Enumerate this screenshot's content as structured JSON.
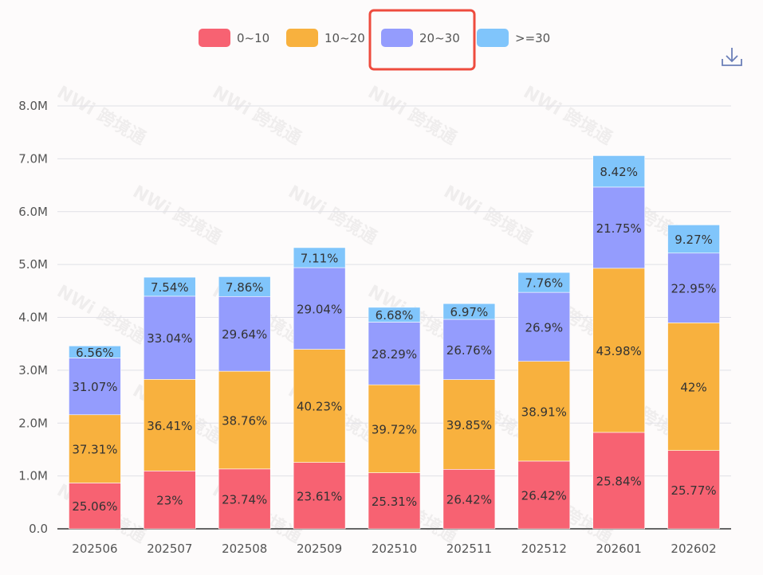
{
  "highlighted_legend": "20~30",
  "toolbar": {
    "download_icon": "download-icon"
  },
  "watermark": "NWi 跨境通",
  "chart_data": {
    "type": "bar",
    "stacked": true,
    "categories": [
      "202506",
      "202507",
      "202508",
      "202509",
      "202510",
      "202511",
      "202512",
      "202601",
      "202602"
    ],
    "totals_M": [
      3.46,
      4.76,
      4.77,
      5.32,
      4.19,
      4.26,
      4.85,
      7.06,
      5.75
    ],
    "series": [
      {
        "name": "0~10",
        "color": "#f76272",
        "percent_labels": [
          "25.06%",
          "23%",
          "23.74%",
          "23.61%",
          "25.31%",
          "26.42%",
          "26.42%",
          "25.84%",
          "25.77%"
        ],
        "percents": [
          25.06,
          23,
          23.74,
          23.61,
          25.31,
          26.42,
          26.42,
          25.84,
          25.77
        ]
      },
      {
        "name": "10~20",
        "color": "#f8b13e",
        "percent_labels": [
          "37.31%",
          "36.41%",
          "38.76%",
          "40.23%",
          "39.72%",
          "39.85%",
          "38.91%",
          "43.98%",
          "42%"
        ],
        "percents": [
          37.31,
          36.41,
          38.76,
          40.23,
          39.72,
          39.85,
          38.91,
          43.98,
          42
        ]
      },
      {
        "name": "20~30",
        "color": "#949cfd",
        "percent_labels": [
          "31.07%",
          "33.04%",
          "29.64%",
          "29.04%",
          "28.29%",
          "26.76%",
          "26.9%",
          "21.75%",
          "22.95%"
        ],
        "percents": [
          31.07,
          33.04,
          29.64,
          29.04,
          28.29,
          26.76,
          26.9,
          21.75,
          22.95
        ]
      },
      {
        "name": ">=30",
        "color": "#80c5fb",
        "percent_labels": [
          "6.56%",
          "7.54%",
          "7.86%",
          "7.11%",
          "6.68%",
          "6.97%",
          "7.76%",
          "8.42%",
          "9.27%"
        ],
        "percents": [
          6.56,
          7.54,
          7.86,
          7.11,
          6.68,
          6.97,
          7.76,
          8.42,
          9.27
        ]
      }
    ],
    "y_ticks": [
      "0.0",
      "1.0M",
      "2.0M",
      "3.0M",
      "4.0M",
      "5.0M",
      "6.0M",
      "7.0M",
      "8.0M"
    ],
    "ylim": [
      0,
      8000000
    ],
    "grid": true,
    "legend_position": "top-center"
  }
}
